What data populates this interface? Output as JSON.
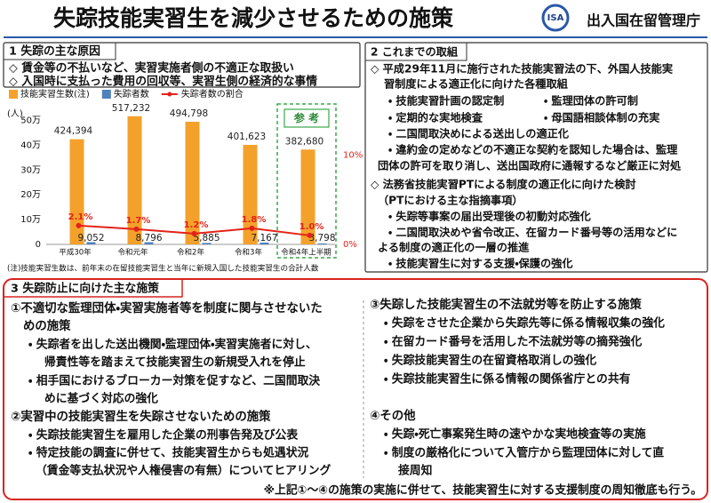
{
  "header": {
    "title": "失踪技能実習生を減少させるための施策",
    "logo": "ISA",
    "agency": "出入国在留管理庁"
  },
  "section1": {
    "heading": "1 失踪の主な原因",
    "items": [
      "◇ 賃金等の不払いなど、実習実施者側の不適正な取扱い",
      "◇ 入国時に支払った費用の回収等、実習生側の経済的な事情"
    ]
  },
  "chart_data": {
    "type": "bar",
    "y_unit": "(人)",
    "categories": [
      "平成30年",
      "令和元年",
      "令和2年",
      "令和3年",
      "令和4年上半期"
    ],
    "series": [
      {
        "name": "技能実習生数(注)",
        "color": "#f4a12b",
        "values": [
          424394,
          517232,
          494798,
          401623,
          382680
        ],
        "value_labels": [
          "424,394",
          "517,232",
          "494,798",
          "401,623",
          "382,680"
        ]
      },
      {
        "name": "失踪者数",
        "color": "#4f81bd",
        "values": [
          9052,
          8796,
          5885,
          7167,
          3798
        ],
        "value_labels": [
          "9,052",
          "8,796",
          "5,885",
          "7,167",
          "3,798"
        ]
      },
      {
        "name": "失踪者数の割合",
        "type": "line",
        "axis": "y2",
        "color": "#e32219",
        "values": [
          2.1,
          1.7,
          1.2,
          1.8,
          1.0
        ],
        "value_labels": [
          "2.1%",
          "1.7%",
          "1.2%",
          "1.8%",
          "1.0%"
        ]
      }
    ],
    "ylim": [
      0,
      520000
    ],
    "yticks": [
      0,
      {
        "value": 100000,
        "label": "10万"
      },
      {
        "value": 200000,
        "label": "20万"
      },
      {
        "value": 300000,
        "label": "30万"
      },
      {
        "value": 400000,
        "label": "40万"
      },
      {
        "value": 500000,
        "label": "50万"
      }
    ],
    "y2lim": [
      0,
      14.4
    ],
    "y2ticks": [
      {
        "value": 0,
        "label": "0%"
      },
      {
        "value": 10,
        "label": "10%"
      }
    ],
    "reference_label": "参 考",
    "note": "(注)技能実習生数は、前年末の在留技能実習生と当年に新規入国した技能実習生の合計人数"
  },
  "section2": {
    "heading": "2 これまでの取組",
    "lines": [
      "◇ 平成29年11月に施行された技能実習法の下、外国人技能実",
      "習制度による適正化に向けた各種取組",
      "・ 技能実習計画の認定制",
      "・ 監理団体の許可制",
      "・ 定期的な実地検査",
      "・ 母国語相談体制の充実",
      "・ 二国間取決めによる送出しの適正化",
      "・ 違約金の定めなどの不適正な契約を認知した場合は、監理",
      "団体の許可を取り消し、送出国政府に通報するなど厳正に対処",
      "◇ 法務省技能実習PTによる制度の適正化に向けた検討",
      "（PTにおける主な指摘事項）",
      "・ 失踪等事案の届出受理後の初動対応強化",
      "・ 二国間取決めや省令改正、在留カード番号等の活用などに",
      "よる制度の適正化の一層の推進",
      "・ 技能実習生に対する支援・保護の強化"
    ]
  },
  "section3": {
    "heading": "3 失踪防止に向けた主な施策",
    "left": [
      "①不適切な監理団体・実習実施者等を制度に関与させないた",
      "めの施策",
      "・ 失踪者を出した送出機関・監理団体・実習実施者に対し、",
      "帰責性等を踏まえて技能実習生の新規受入れを停止",
      "・ 相手国におけるブローカー対策を促すなど、二国間取決",
      "めに基づく対応の強化",
      "②実習中の技能実習生を失踪させないための施策",
      "・ 失踪技能実習生を雇用した企業の刑事告発及び公表",
      "・ 特定技能の調査に併せて、技能実習生からも処遇状況",
      "（賃金等支払状況や人権侵害の有無）についてヒアリング"
    ],
    "right": [
      "③失踪した技能実習生の不法就労等を防止する施策",
      "・ 失踪をさせた企業から失踪先等に係る情報収集の強化",
      "・ 在留カード番号を活用した不法就労等の摘発強化",
      "・ 失踪技能実習生の在留資格取消しの強化",
      "・ 失踪技能実習生に係る情報の関係省庁との共有",
      "④その他",
      "・ 失踪・死亡事案発生時の速やかな実地検査等の実施",
      "・ 制度の厳格化について入管庁から監理団体に対して直",
      "接周知"
    ],
    "footnote": "※上記①～④の施策の実施に併せて、技能実習生に対する支援制度の周知徹底も行う。"
  }
}
